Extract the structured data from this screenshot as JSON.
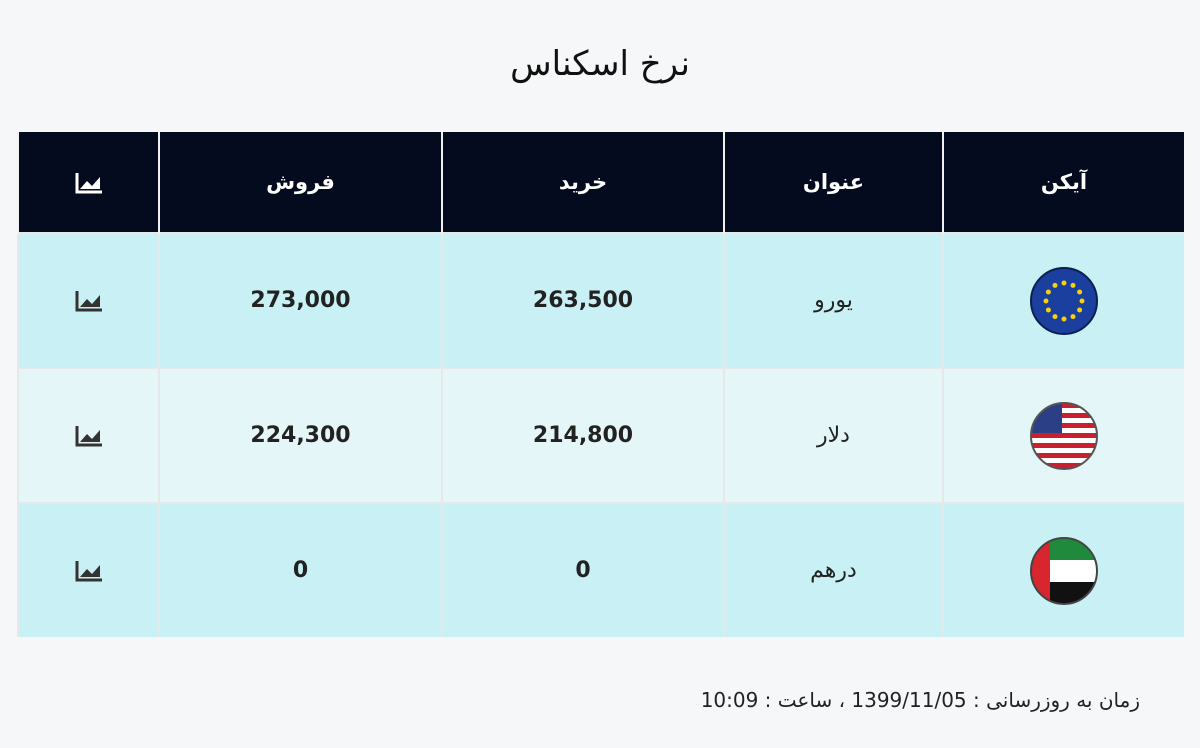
{
  "title": "نرخ اسکناس",
  "table": {
    "header": [
      "آیکن",
      "عنوان",
      "خرید",
      "فروش"
    ],
    "rows": [
      [
        "یورو",
        "263,500",
        "273,000"
      ],
      [
        "دلار",
        "214,800",
        "224,300"
      ],
      [
        "درهم",
        "0",
        "0"
      ]
    ]
  },
  "footer": "زمان به روزرسانی : 1399/11/05 ، ساعت : 10:09"
}
